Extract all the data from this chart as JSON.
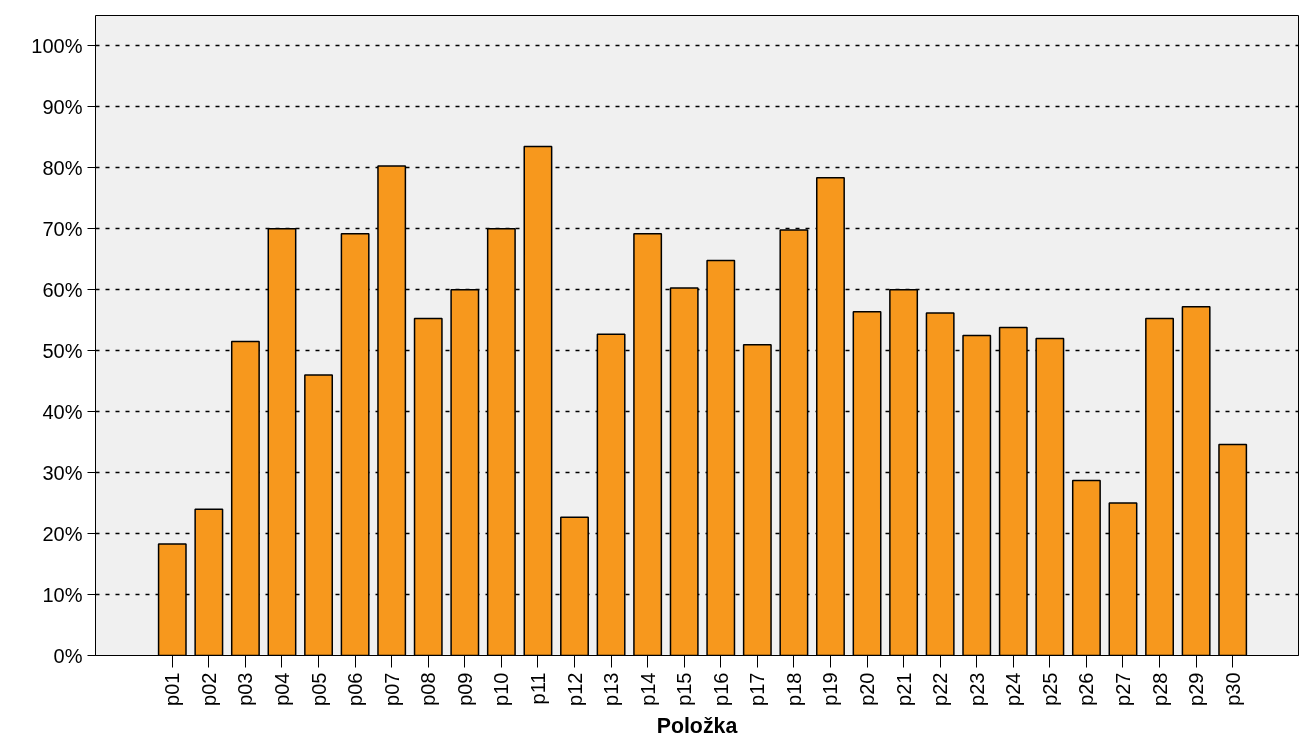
{
  "chart_data": {
    "type": "bar",
    "xlabel": "Položka",
    "categories": [
      "p01",
      "p02",
      "p03",
      "p04",
      "p05",
      "p06",
      "p07",
      "p08",
      "p09",
      "p10",
      "p11",
      "p12",
      "p13",
      "p14",
      "p15",
      "p16",
      "p17",
      "p18",
      "p19",
      "p20",
      "p21",
      "p22",
      "p23",
      "p24",
      "p25",
      "p26",
      "p27",
      "p28",
      "p29",
      "p30"
    ],
    "series": [
      {
        "color": "#f7981d",
        "values": [
          18.3,
          24,
          51.5,
          70,
          46,
          69.2,
          80.3,
          55.3,
          60,
          70,
          83.5,
          22.7,
          52.7,
          69.2,
          60.3,
          64.8,
          51,
          69.8,
          78.4,
          56.4,
          60,
          56.2,
          52.5,
          53.8,
          52,
          28.7,
          25,
          55.3,
          57.2,
          34.6
        ]
      }
    ],
    "ylim": [
      0,
      105
    ],
    "yticks": [
      {
        "value": 0,
        "label": "0%"
      },
      {
        "value": 10,
        "label": "10%"
      },
      {
        "value": 20,
        "label": "20%"
      },
      {
        "value": 30,
        "label": "30%"
      },
      {
        "value": 40,
        "label": "40%"
      },
      {
        "value": 50,
        "label": "50%"
      },
      {
        "value": 60,
        "label": "60%"
      },
      {
        "value": 70,
        "label": "70%"
      },
      {
        "value": 80,
        "label": "80%"
      },
      {
        "value": 90,
        "label": "90%"
      },
      {
        "value": 100,
        "label": "100%"
      }
    ],
    "grid": "y"
  }
}
